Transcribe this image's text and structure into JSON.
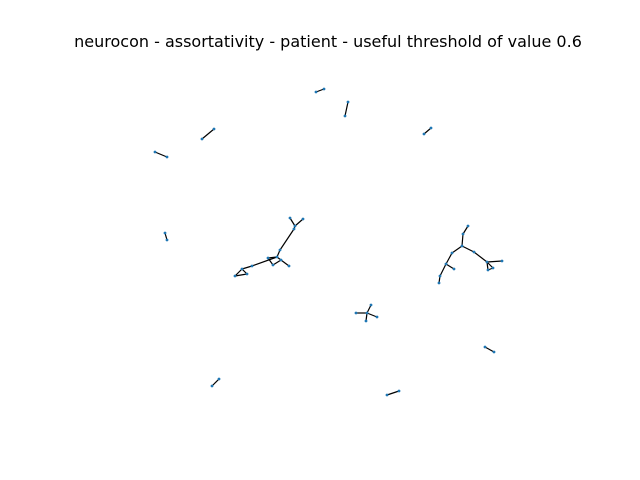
{
  "figure": {
    "title": "neurocon - assortativity - patient - useful threshold of value 0.6"
  },
  "style": {
    "edge_color": "#000000",
    "node_color": "#1f77b4",
    "background": "#ffffff"
  }
}
